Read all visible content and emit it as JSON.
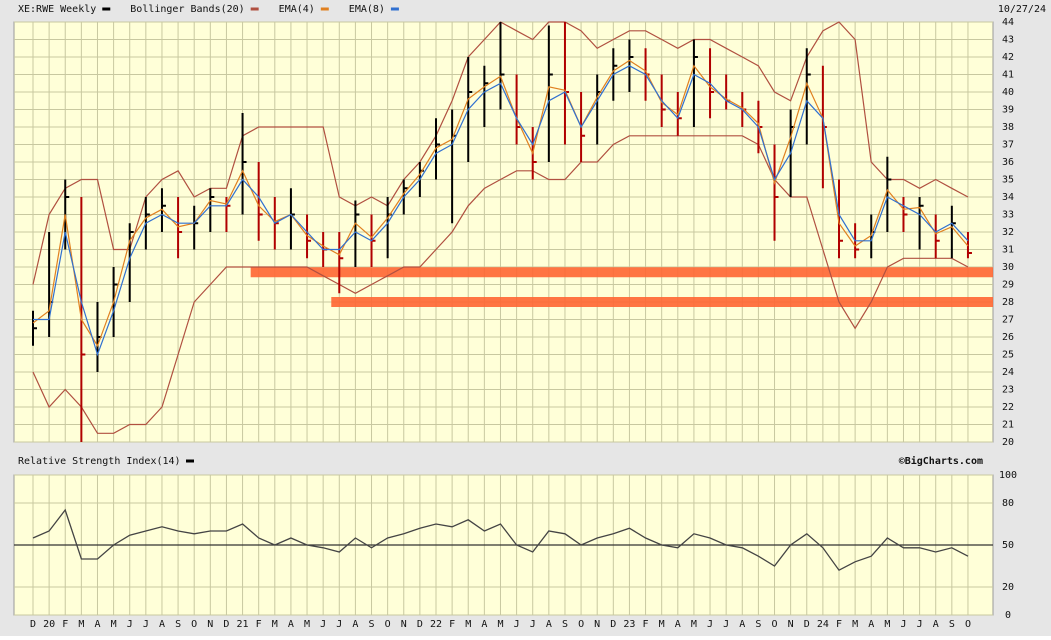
{
  "chart_data": [
    {
      "type": "ohlc",
      "date": "10/27/24",
      "categories": [
        "D",
        "20",
        "F",
        "M",
        "A",
        "M",
        "J",
        "J",
        "A",
        "S",
        "O",
        "N",
        "D",
        "21",
        "F",
        "M",
        "A",
        "M",
        "J",
        "J",
        "A",
        "S",
        "O",
        "N",
        "D",
        "22",
        "F",
        "M",
        "A",
        "M",
        "J",
        "J",
        "A",
        "S",
        "O",
        "N",
        "D",
        "23",
        "F",
        "M",
        "A",
        "M",
        "J",
        "J",
        "A",
        "S",
        "O",
        "N",
        "D",
        "24",
        "F",
        "M",
        "A",
        "M",
        "J",
        "J",
        "A",
        "S",
        "O"
      ],
      "series": [
        {
          "name": "XE:RWE Weekly",
          "color": "#000000",
          "down_color": "#b00000",
          "high": [
            27.5,
            32,
            35,
            34,
            28,
            30,
            32.5,
            34,
            34.5,
            34,
            33.5,
            34.5,
            34,
            38.8,
            36,
            34,
            34.5,
            33,
            32,
            32,
            33.8,
            33,
            34,
            35,
            36,
            38.5,
            39,
            42,
            41.5,
            44,
            41,
            38,
            43.8,
            44,
            40,
            41,
            42.5,
            43,
            42.5,
            41,
            40,
            43,
            42.5,
            41,
            40,
            39.5,
            37,
            39,
            42.5,
            41.5,
            35,
            32.5,
            33,
            36.3,
            34,
            34,
            33,
            33.5,
            32
          ],
          "low": [
            25.5,
            26,
            31,
            20,
            24,
            26,
            28,
            31,
            32,
            30.5,
            31,
            32,
            32,
            33,
            31.5,
            31,
            31,
            30.5,
            30,
            28.5,
            30,
            30,
            30.5,
            33,
            34,
            35,
            32.5,
            36,
            38,
            39,
            37,
            35,
            36,
            37,
            36,
            37,
            39.5,
            40,
            39.5,
            38,
            37.5,
            38,
            38.5,
            39,
            38,
            36.5,
            31.5,
            34,
            37,
            34.5,
            30.5,
            30.5,
            30.5,
            32,
            32,
            31,
            30.5,
            30.5,
            30.5
          ],
          "close": [
            26.5,
            28,
            34,
            25,
            26,
            29,
            32,
            33,
            33.5,
            32,
            32.5,
            34,
            33.5,
            36,
            33,
            32.5,
            33,
            31.5,
            31,
            30.5,
            33,
            31.5,
            33,
            34.5,
            35.5,
            37,
            37.5,
            40,
            40.5,
            41,
            38,
            36,
            41,
            40,
            37.5,
            40,
            41.5,
            42,
            41,
            39,
            38.5,
            42,
            40,
            39.5,
            39,
            38,
            34,
            38,
            41,
            38,
            31.5,
            31,
            32,
            35,
            33,
            33.5,
            31.5,
            32.5,
            30.8
          ]
        },
        {
          "name": "Bollinger Bands(20)",
          "color": "#b05040",
          "upper": [
            29,
            33,
            34.5,
            35,
            35,
            31,
            31,
            34,
            35,
            35.5,
            34,
            34.5,
            34.5,
            37.5,
            38,
            38,
            38,
            38,
            38,
            34,
            33.5,
            34,
            33.5,
            35,
            36,
            37.5,
            39.5,
            42,
            43,
            44,
            43.5,
            43,
            44,
            44,
            43.5,
            42.5,
            43,
            43.5,
            43.5,
            43,
            42.5,
            43,
            43,
            42.5,
            42,
            41.5,
            40,
            39.5,
            42,
            43.5,
            44,
            43,
            36,
            35,
            35,
            34.5,
            35,
            34.5,
            34
          ],
          "lower": [
            24,
            22,
            23,
            22,
            20.5,
            20.5,
            21,
            21,
            22,
            25,
            28,
            29,
            30,
            30,
            30,
            30,
            30,
            30,
            29.5,
            29,
            28.5,
            29,
            29.5,
            30,
            30,
            31,
            32,
            33.5,
            34.5,
            35,
            35.5,
            35.5,
            35,
            35,
            36,
            36,
            37,
            37.5,
            37.5,
            37.5,
            37.5,
            37.5,
            37.5,
            37.5,
            37.5,
            37,
            35,
            34,
            34,
            31,
            28,
            26.5,
            28,
            30,
            30.5,
            30.5,
            30.5,
            30.5,
            30
          ]
        },
        {
          "name": "EMA(4)",
          "color": "#e08020",
          "values": [
            26.8,
            27.5,
            33,
            27,
            25.5,
            28,
            31.5,
            32.8,
            33.3,
            32.3,
            32.5,
            33.8,
            33.6,
            35.5,
            33.5,
            32.6,
            33,
            31.8,
            31.2,
            30.7,
            32.5,
            31.7,
            32.8,
            34.2,
            35.3,
            36.8,
            37.3,
            39.6,
            40.3,
            40.9,
            38.5,
            36.5,
            40.3,
            40.1,
            38,
            39.7,
            41.2,
            41.8,
            41.2,
            39.4,
            38.7,
            41.5,
            40.3,
            39.6,
            39.1,
            38.2,
            34.8,
            37.4,
            40.5,
            38.5,
            32.5,
            31.2,
            31.8,
            34.4,
            33.3,
            33.4,
            31.9,
            32.3,
            31.2
          ]
        },
        {
          "name": "EMA(8)",
          "color": "#3070d0",
          "values": [
            27,
            27,
            32,
            28,
            25,
            27.5,
            30.5,
            32.5,
            33,
            32.5,
            32.5,
            33.5,
            33.5,
            35,
            34,
            32.5,
            33,
            32,
            31,
            31,
            32,
            31.5,
            32.5,
            34,
            35,
            36.5,
            37,
            39,
            40,
            40.5,
            38.5,
            37,
            39.5,
            40,
            38,
            39.5,
            41,
            41.5,
            41,
            39.5,
            38.5,
            41,
            40.5,
            39.5,
            39,
            38,
            35,
            36.5,
            39.5,
            38.5,
            33,
            31.5,
            31.5,
            34,
            33.5,
            33,
            32,
            32.5,
            31.5
          ]
        }
      ],
      "levels": [
        {
          "value": 29.7,
          "from_index": 14,
          "color": "#ff6633"
        },
        {
          "value": 28,
          "from_index": 19,
          "color": "#ff6633"
        }
      ],
      "ylim": [
        20,
        44
      ],
      "yticks": [
        20,
        21,
        22,
        23,
        24,
        25,
        26,
        27,
        28,
        29,
        30,
        31,
        32,
        33,
        34,
        35,
        36,
        37,
        38,
        39,
        40,
        41,
        42,
        43,
        44
      ],
      "grid": true
    },
    {
      "type": "line",
      "title": "Relative Strength Index(14)",
      "credit": "©BigCharts.com",
      "color": "#444444",
      "values": [
        55,
        60,
        75,
        40,
        40,
        50,
        57,
        60,
        63,
        60,
        58,
        60,
        60,
        65,
        55,
        50,
        55,
        50,
        48,
        45,
        55,
        48,
        55,
        58,
        62,
        65,
        63,
        68,
        60,
        65,
        50,
        45,
        60,
        58,
        50,
        55,
        58,
        62,
        55,
        50,
        48,
        58,
        55,
        50,
        48,
        42,
        35,
        50,
        58,
        48,
        32,
        38,
        42,
        55,
        48,
        48,
        45,
        48,
        42
      ],
      "reference": 50,
      "ylim": [
        0,
        100
      ],
      "yticks": [
        0,
        20,
        50,
        80,
        100
      ],
      "grid": true
    }
  ]
}
